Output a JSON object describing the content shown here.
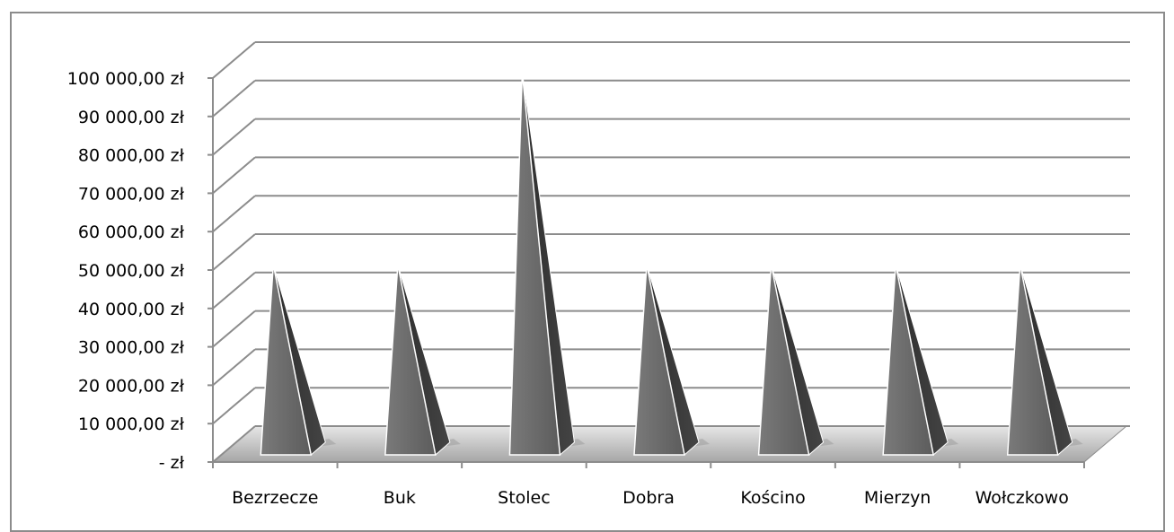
{
  "chart_data": {
    "type": "bar",
    "shape": "pyramid-3d",
    "categories": [
      "Bezrzecze",
      "Buk",
      "Stolec",
      "Dobra",
      "Kościno",
      "Mierzyn",
      "Wołczkowo"
    ],
    "values": [
      50000,
      50000,
      100000,
      50000,
      50000,
      50000,
      50000
    ],
    "ylim": [
      0,
      100000
    ],
    "yticks": [
      0,
      10000,
      20000,
      30000,
      40000,
      50000,
      60000,
      70000,
      80000,
      90000,
      100000
    ],
    "ytick_labels": [
      "-   zł",
      "10 000,00 zł",
      "20 000,00 zł",
      "30 000,00 zł",
      "40 000,00 zł",
      "50 000,00 zł",
      "60 000,00 zł",
      "70 000,00 zł",
      "80 000,00 zł",
      "90 000,00 zł",
      "100 000,00 zł"
    ],
    "title": "",
    "xlabel": "",
    "ylabel": "",
    "grid": true,
    "legend": "none",
    "colors": {
      "bar_front": "#6e6e6e",
      "bar_side": "#333333",
      "bar_highlight": "#ffffff",
      "grid": "#8c8c8c",
      "floor": "#bfbfbf"
    }
  }
}
